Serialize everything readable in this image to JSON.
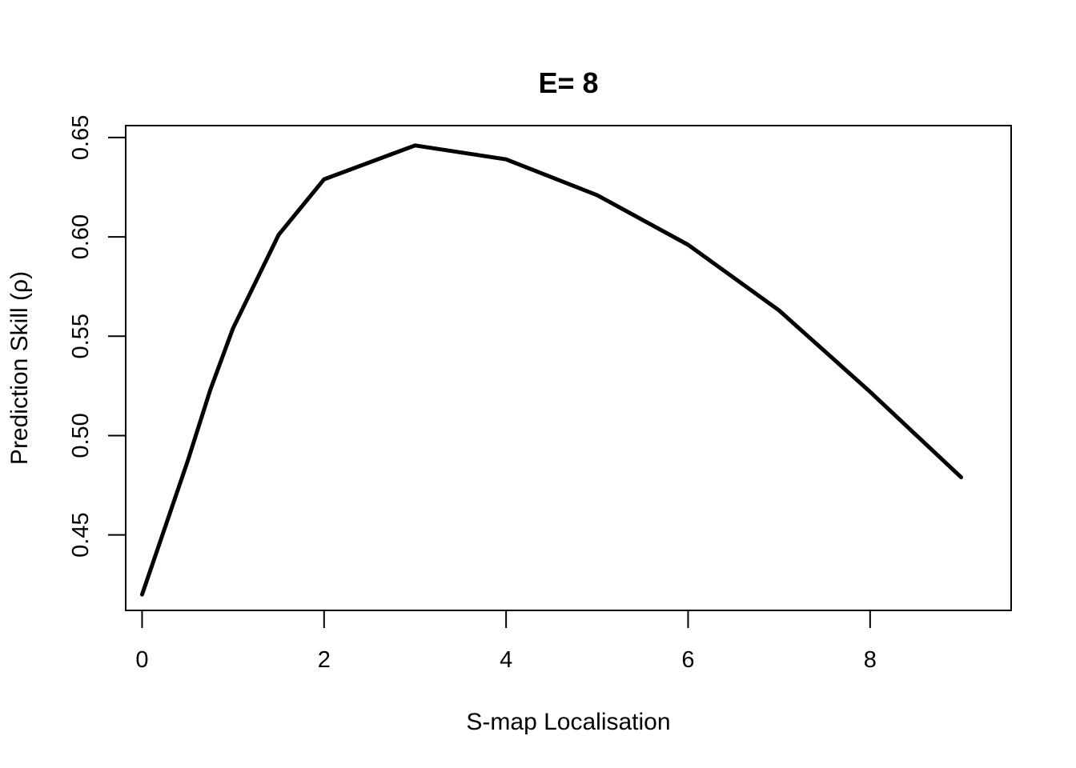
{
  "chart_data": {
    "type": "line",
    "title": "E= 8",
    "xlabel": "S-map Localisation",
    "ylabel": "Prediction Skill (ρ)",
    "xlim": [
      -0.18,
      9.55
    ],
    "ylim": [
      0.412,
      0.656
    ],
    "xticks": [
      0,
      2,
      4,
      6,
      8
    ],
    "xtick_labels": [
      "0",
      "2",
      "4",
      "6",
      "8"
    ],
    "yticks": [
      0.45,
      0.5,
      0.55,
      0.6,
      0.65
    ],
    "ytick_labels": [
      "0.45",
      "0.50",
      "0.55",
      "0.60",
      "0.65"
    ],
    "grid": false,
    "legend": "none",
    "series": [
      {
        "color": "#000000",
        "x": [
          0,
          0.5,
          0.75,
          1,
          1.5,
          2,
          3,
          4,
          5,
          6,
          7,
          8,
          9
        ],
        "y": [
          0.42,
          0.487,
          0.523,
          0.554,
          0.601,
          0.629,
          0.646,
          0.639,
          0.621,
          0.596,
          0.563,
          0.522,
          0.479
        ]
      }
    ]
  }
}
